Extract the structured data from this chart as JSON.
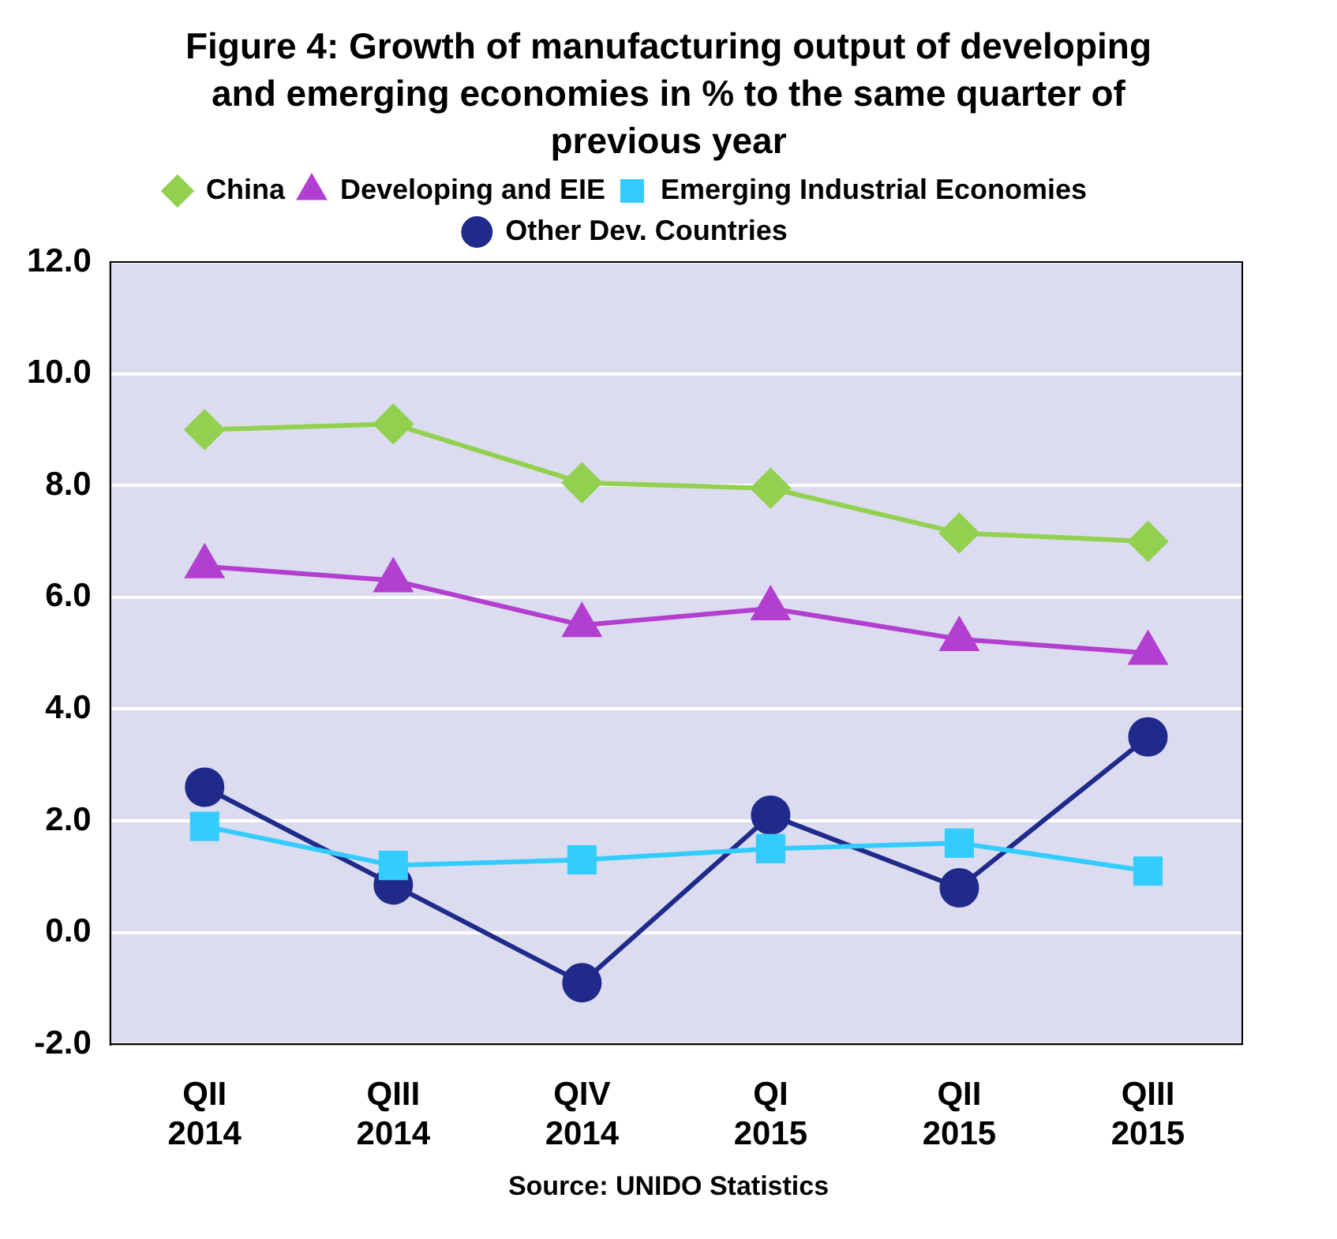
{
  "chart_data": {
    "type": "line",
    "title": "Figure 4: Growth of manufacturing output of developing and emerging economies in % to the same quarter of previous year",
    "categories": [
      "QII 2014",
      "QIII 2014",
      "QIV 2014",
      "QI 2015",
      "QII 2015",
      "QIII 2015"
    ],
    "series": [
      {
        "name": "China",
        "color": "#92d050",
        "marker": "diamond",
        "values": [
          9.0,
          9.1,
          8.05,
          7.95,
          7.15,
          7.0
        ]
      },
      {
        "name": "Developing and EIE",
        "color": "#b23fd0",
        "marker": "triangle",
        "values": [
          6.55,
          6.3,
          5.5,
          5.8,
          5.25,
          5.0
        ]
      },
      {
        "name": "Emerging Industrial Economies",
        "color": "#33ccff",
        "marker": "square",
        "values": [
          1.9,
          1.2,
          1.3,
          1.5,
          1.6,
          1.1
        ]
      },
      {
        "name": "Other Dev. Countries",
        "color": "#1f2a8a",
        "marker": "circle",
        "values": [
          2.6,
          0.85,
          -0.9,
          2.1,
          0.8,
          3.5
        ]
      }
    ],
    "ylim": [
      -2,
      12
    ],
    "yticks": [
      {
        "value": -2,
        "label": "-2.0"
      },
      {
        "value": 0,
        "label": "0.0"
      },
      {
        "value": 2,
        "label": "2.0"
      },
      {
        "value": 4,
        "label": "4.0"
      },
      {
        "value": 6,
        "label": "6.0"
      },
      {
        "value": 8,
        "label": "8.0"
      },
      {
        "value": 10,
        "label": "10.0"
      },
      {
        "value": 12,
        "label": "12.0"
      }
    ],
    "grid": "y",
    "legend": "top",
    "line_style": "solid",
    "annotations": [
      "Source: UNIDO Statistics"
    ]
  }
}
